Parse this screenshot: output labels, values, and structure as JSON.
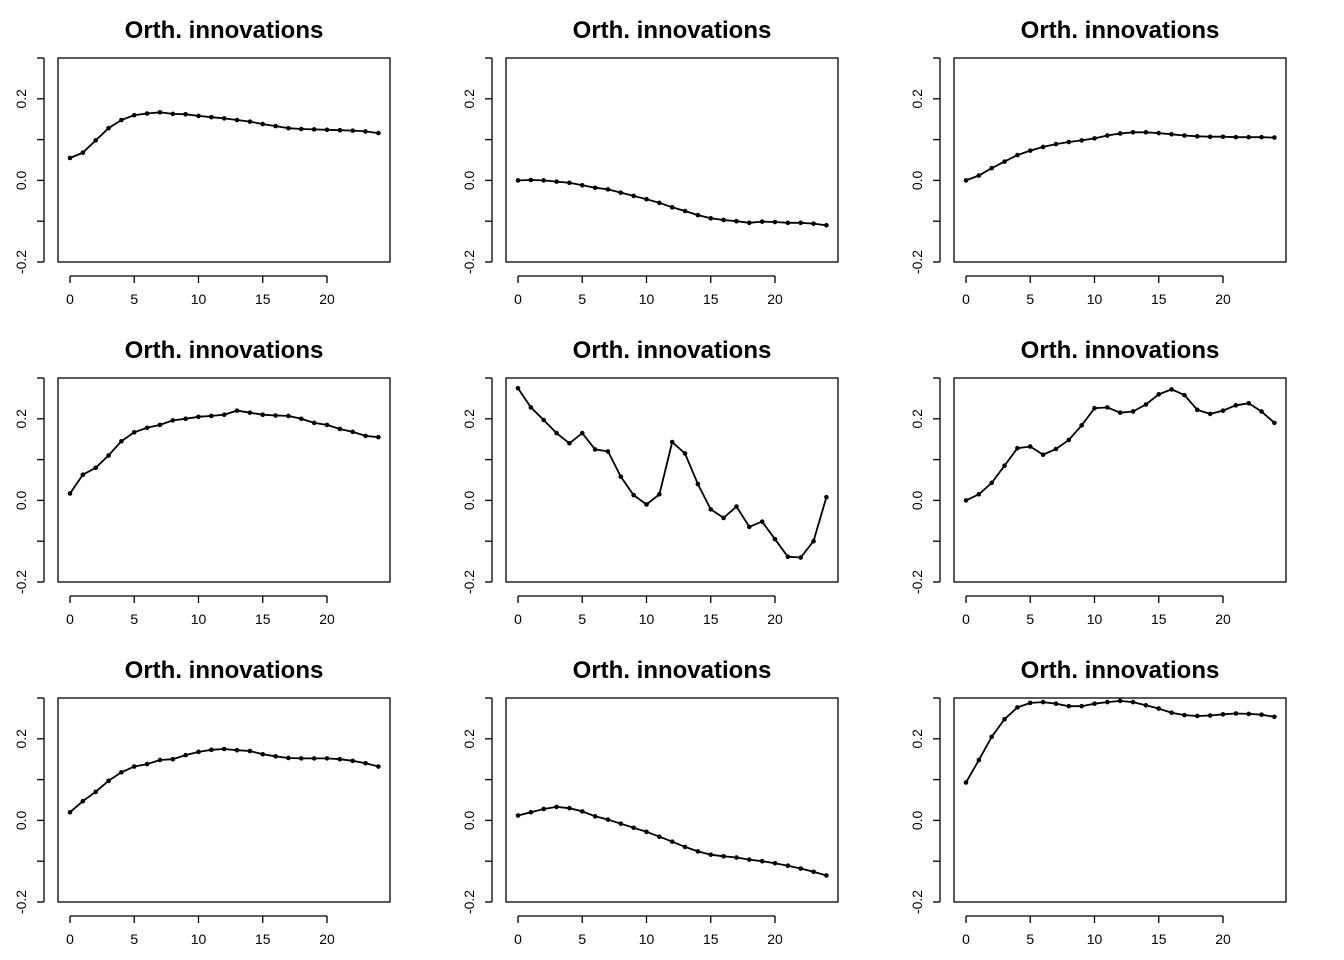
{
  "chart_data": [
    {
      "type": "line",
      "title": "Orth. innovations",
      "x": [
        0,
        1,
        2,
        3,
        4,
        5,
        6,
        7,
        8,
        9,
        10,
        11,
        12,
        13,
        14,
        15,
        16,
        17,
        18,
        19,
        20,
        21,
        22,
        23,
        24
      ],
      "values": [
        0.055,
        0.068,
        0.098,
        0.128,
        0.148,
        0.16,
        0.164,
        0.167,
        0.163,
        0.162,
        0.158,
        0.155,
        0.152,
        0.148,
        0.144,
        0.138,
        0.133,
        0.128,
        0.126,
        0.125,
        0.124,
        0.123,
        0.122,
        0.12,
        0.116
      ],
      "xlim": [
        0,
        24
      ],
      "ylim": [
        -0.2,
        0.3
      ],
      "xticks": [
        0,
        5,
        10,
        15,
        20
      ],
      "yticks": [
        "-0.2",
        "0.0",
        "0.2"
      ]
    },
    {
      "type": "line",
      "title": "Orth. innovations",
      "x": [
        0,
        1,
        2,
        3,
        4,
        5,
        6,
        7,
        8,
        9,
        10,
        11,
        12,
        13,
        14,
        15,
        16,
        17,
        18,
        19,
        20,
        21,
        22,
        23,
        24
      ],
      "values": [
        0.0,
        0.001,
        0.0,
        -0.003,
        -0.006,
        -0.012,
        -0.018,
        -0.022,
        -0.03,
        -0.038,
        -0.046,
        -0.055,
        -0.066,
        -0.075,
        -0.085,
        -0.093,
        -0.097,
        -0.1,
        -0.104,
        -0.101,
        -0.102,
        -0.104,
        -0.104,
        -0.106,
        -0.11
      ],
      "xlim": [
        0,
        24
      ],
      "ylim": [
        -0.2,
        0.3
      ],
      "xticks": [
        0,
        5,
        10,
        15,
        20
      ],
      "yticks": [
        "-0.2",
        "0.0",
        "0.2"
      ]
    },
    {
      "type": "line",
      "title": "Orth. innovations",
      "x": [
        0,
        1,
        2,
        3,
        4,
        5,
        6,
        7,
        8,
        9,
        10,
        11,
        12,
        13,
        14,
        15,
        16,
        17,
        18,
        19,
        20,
        21,
        22,
        23,
        24
      ],
      "values": [
        0.0,
        0.012,
        0.03,
        0.046,
        0.062,
        0.073,
        0.082,
        0.089,
        0.094,
        0.098,
        0.103,
        0.11,
        0.115,
        0.118,
        0.118,
        0.116,
        0.113,
        0.11,
        0.108,
        0.107,
        0.107,
        0.106,
        0.106,
        0.106,
        0.105
      ],
      "xlim": [
        0,
        24
      ],
      "ylim": [
        -0.2,
        0.3
      ],
      "xticks": [
        0,
        5,
        10,
        15,
        20
      ],
      "yticks": [
        "-0.2",
        "0.0",
        "0.2"
      ]
    },
    {
      "type": "line",
      "title": "Orth. innovations",
      "x": [
        0,
        1,
        2,
        3,
        4,
        5,
        6,
        7,
        8,
        9,
        10,
        11,
        12,
        13,
        14,
        15,
        16,
        17,
        18,
        19,
        20,
        21,
        22,
        23,
        24
      ],
      "values": [
        0.017,
        0.063,
        0.08,
        0.11,
        0.145,
        0.167,
        0.178,
        0.185,
        0.196,
        0.2,
        0.205,
        0.207,
        0.21,
        0.22,
        0.215,
        0.21,
        0.208,
        0.207,
        0.2,
        0.19,
        0.185,
        0.175,
        0.168,
        0.158,
        0.155
      ],
      "xlim": [
        0,
        24
      ],
      "ylim": [
        -0.2,
        0.3
      ],
      "xticks": [
        0,
        5,
        10,
        15,
        20
      ],
      "yticks": [
        "-0.2",
        "0.0",
        "0.2"
      ]
    },
    {
      "type": "line",
      "title": "Orth. innovations",
      "x": [
        0,
        1,
        2,
        3,
        4,
        5,
        6,
        7,
        8,
        9,
        10,
        11,
        12,
        13,
        14,
        15,
        16,
        17,
        18,
        19,
        20,
        21,
        22,
        23,
        24
      ],
      "values": [
        0.275,
        0.228,
        0.197,
        0.165,
        0.14,
        0.165,
        0.125,
        0.12,
        0.058,
        0.013,
        -0.01,
        0.015,
        0.143,
        0.115,
        0.04,
        -0.022,
        -0.043,
        -0.015,
        -0.065,
        -0.052,
        -0.095,
        -0.138,
        -0.14,
        -0.1,
        0.008
      ],
      "xlim": [
        0,
        24
      ],
      "ylim": [
        -0.2,
        0.3
      ],
      "xticks": [
        0,
        5,
        10,
        15,
        20
      ],
      "yticks": [
        "-0.2",
        "0.0",
        "0.2"
      ]
    },
    {
      "type": "line",
      "title": "Orth. innovations",
      "x": [
        0,
        1,
        2,
        3,
        4,
        5,
        6,
        7,
        8,
        9,
        10,
        11,
        12,
        13,
        14,
        15,
        16,
        17,
        18,
        19,
        20,
        21,
        22,
        23,
        24
      ],
      "values": [
        0.0,
        0.015,
        0.043,
        0.085,
        0.128,
        0.132,
        0.112,
        0.126,
        0.148,
        0.184,
        0.226,
        0.228,
        0.215,
        0.218,
        0.235,
        0.26,
        0.272,
        0.258,
        0.222,
        0.212,
        0.22,
        0.233,
        0.238,
        0.218,
        0.19
      ],
      "xlim": [
        0,
        24
      ],
      "ylim": [
        -0.2,
        0.3
      ],
      "xticks": [
        0,
        5,
        10,
        15,
        20
      ],
      "yticks": [
        "-0.2",
        "0.0",
        "0.2"
      ]
    },
    {
      "type": "line",
      "title": "Orth. innovations",
      "x": [
        0,
        1,
        2,
        3,
        4,
        5,
        6,
        7,
        8,
        9,
        10,
        11,
        12,
        13,
        14,
        15,
        16,
        17,
        18,
        19,
        20,
        21,
        22,
        23,
        24
      ],
      "values": [
        0.02,
        0.047,
        0.07,
        0.097,
        0.118,
        0.132,
        0.138,
        0.148,
        0.15,
        0.16,
        0.168,
        0.173,
        0.175,
        0.172,
        0.17,
        0.162,
        0.157,
        0.153,
        0.152,
        0.152,
        0.152,
        0.15,
        0.146,
        0.14,
        0.132
      ],
      "xlim": [
        0,
        24
      ],
      "ylim": [
        -0.2,
        0.3
      ],
      "xticks": [
        0,
        5,
        10,
        15,
        20
      ],
      "yticks": [
        "-0.2",
        "0.0",
        "0.2"
      ]
    },
    {
      "type": "line",
      "title": "Orth. innovations",
      "x": [
        0,
        1,
        2,
        3,
        4,
        5,
        6,
        7,
        8,
        9,
        10,
        11,
        12,
        13,
        14,
        15,
        16,
        17,
        18,
        19,
        20,
        21,
        22,
        23,
        24
      ],
      "values": [
        0.012,
        0.02,
        0.028,
        0.033,
        0.03,
        0.022,
        0.01,
        0.002,
        -0.008,
        -0.018,
        -0.028,
        -0.04,
        -0.052,
        -0.065,
        -0.076,
        -0.084,
        -0.088,
        -0.091,
        -0.096,
        -0.1,
        -0.105,
        -0.111,
        -0.118,
        -0.126,
        -0.135
      ],
      "xlim": [
        0,
        24
      ],
      "ylim": [
        -0.2,
        0.3
      ],
      "xticks": [
        0,
        5,
        10,
        15,
        20
      ],
      "yticks": [
        "-0.2",
        "0.0",
        "0.2"
      ]
    },
    {
      "type": "line",
      "title": "Orth. innovations",
      "x": [
        0,
        1,
        2,
        3,
        4,
        5,
        6,
        7,
        8,
        9,
        10,
        11,
        12,
        13,
        14,
        15,
        16,
        17,
        18,
        19,
        20,
        21,
        22,
        23,
        24
      ],
      "values": [
        0.093,
        0.148,
        0.205,
        0.248,
        0.277,
        0.288,
        0.29,
        0.286,
        0.28,
        0.28,
        0.286,
        0.29,
        0.293,
        0.29,
        0.282,
        0.274,
        0.264,
        0.258,
        0.256,
        0.257,
        0.26,
        0.262,
        0.261,
        0.259,
        0.254
      ],
      "xlim": [
        0,
        24
      ],
      "ylim": [
        -0.2,
        0.3
      ],
      "xticks": [
        0,
        5,
        10,
        15,
        20
      ],
      "yticks": [
        "-0.2",
        "0.0",
        "0.2"
      ]
    }
  ]
}
